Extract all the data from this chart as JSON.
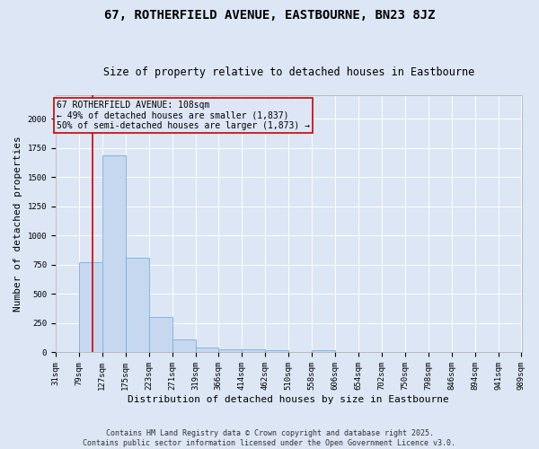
{
  "title": "67, ROTHERFIELD AVENUE, EASTBOURNE, BN23 8JZ",
  "subtitle": "Size of property relative to detached houses in Eastbourne",
  "xlabel": "Distribution of detached houses by size in Eastbourne",
  "ylabel": "Number of detached properties",
  "bins": [
    31,
    79,
    127,
    175,
    223,
    271,
    319,
    366,
    414,
    462,
    510,
    558,
    606,
    654,
    702,
    750,
    798,
    846,
    894,
    941,
    989
  ],
  "bar_heights": [
    0,
    770,
    1690,
    810,
    300,
    115,
    40,
    30,
    25,
    20,
    0,
    20,
    0,
    0,
    0,
    0,
    0,
    0,
    0,
    0
  ],
  "bar_color": "#c5d8f0",
  "bar_edge_color": "#7bafd4",
  "vline_x": 108,
  "vline_color": "#cc0000",
  "annotation_text": "67 ROTHERFIELD AVENUE: 108sqm\n← 49% of detached houses are smaller (1,837)\n50% of semi-detached houses are larger (1,873) →",
  "annotation_box_color": "#cc0000",
  "ylim": [
    0,
    2200
  ],
  "background_color": "#dce6f5",
  "footer_text": "Contains HM Land Registry data © Crown copyright and database right 2025.\nContains public sector information licensed under the Open Government Licence v3.0.",
  "title_fontsize": 10,
  "subtitle_fontsize": 8.5,
  "axis_label_fontsize": 8,
  "tick_fontsize": 6.5,
  "annotation_fontsize": 7,
  "footer_fontsize": 6
}
